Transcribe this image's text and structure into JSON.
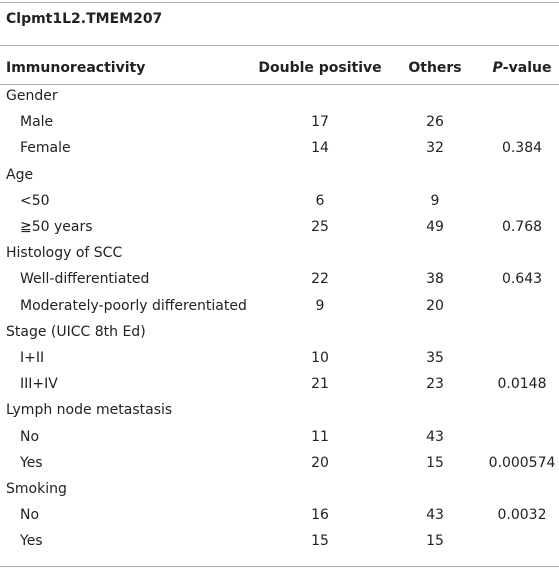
{
  "header": {
    "title": "Clpmt1L2.TMEM207"
  },
  "table": {
    "columns": [
      "Immunoreactivity",
      "Double positive",
      "Others",
      "P-value"
    ],
    "groups": [
      {
        "label": "Gender",
        "rows": [
          {
            "label": "Male",
            "values": [
              "17",
              "26"
            ]
          },
          {
            "label": "Female",
            "values": [
              "14",
              "32"
            ],
            "p": "0.384"
          }
        ]
      },
      {
        "label": "Age",
        "rows": [
          {
            "label": "<50",
            "values": [
              "6",
              "9"
            ]
          },
          {
            "label": "≧50 years",
            "values": [
              "25",
              "49"
            ],
            "p": "0.768"
          }
        ]
      },
      {
        "label": "Histology of SCC",
        "rows": [
          {
            "label": "Well-differentiated",
            "values": [
              "22",
              "38"
            ],
            "p": "0.643"
          },
          {
            "label": "Moderately-poorly differentiated",
            "values": [
              "9",
              "20"
            ]
          }
        ]
      },
      {
        "label": "Stage (UICC 8th Ed)",
        "rows": [
          {
            "label": "I+II",
            "values": [
              "10",
              "35"
            ]
          },
          {
            "label": "III+IV",
            "values": [
              "21",
              "23"
            ],
            "p": "0.0148"
          }
        ]
      },
      {
        "label": "Lymph node metastasis",
        "rows": [
          {
            "label": "No",
            "values": [
              "11",
              "43"
            ]
          },
          {
            "label": "Yes",
            "values": [
              "20",
              "15"
            ],
            "p": "0.000574"
          }
        ]
      },
      {
        "label": "Smoking",
        "rows": [
          {
            "label": "No",
            "values": [
              "16",
              "43"
            ],
            "p": "0.0032"
          },
          {
            "label": "Yes",
            "values": [
              "15",
              "15"
            ]
          }
        ]
      }
    ]
  }
}
